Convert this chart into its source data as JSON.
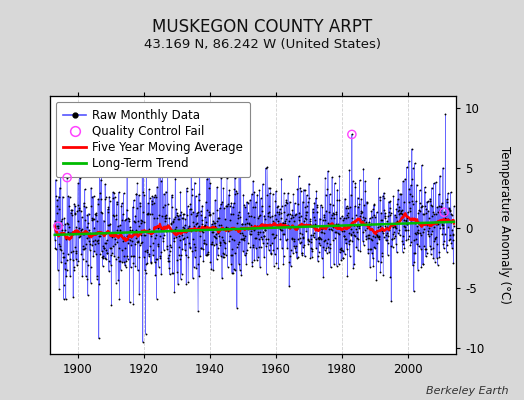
{
  "title": "MUSKEGON COUNTY ARPT",
  "subtitle": "43.169 N, 86.242 W (United States)",
  "ylabel": "Temperature Anomaly (°C)",
  "credit": "Berkeley Earth",
  "start_year": 1893,
  "end_year": 2013,
  "ylim": [
    -10.5,
    11.0
  ],
  "yticks": [
    -10,
    -5,
    0,
    5,
    10
  ],
  "xticks": [
    1900,
    1920,
    1940,
    1960,
    1980,
    2000
  ],
  "bg_color": "#d8d8d8",
  "plot_bg_color": "#ffffff",
  "raw_line_color": "#5555ff",
  "raw_marker_color": "#000000",
  "moving_avg_color": "#ff0000",
  "trend_color": "#00bb00",
  "qc_fail_color": "#ff44ff",
  "legend_fontsize": 8.5,
  "title_fontsize": 12,
  "subtitle_fontsize": 9.5,
  "credit_fontsize": 8
}
